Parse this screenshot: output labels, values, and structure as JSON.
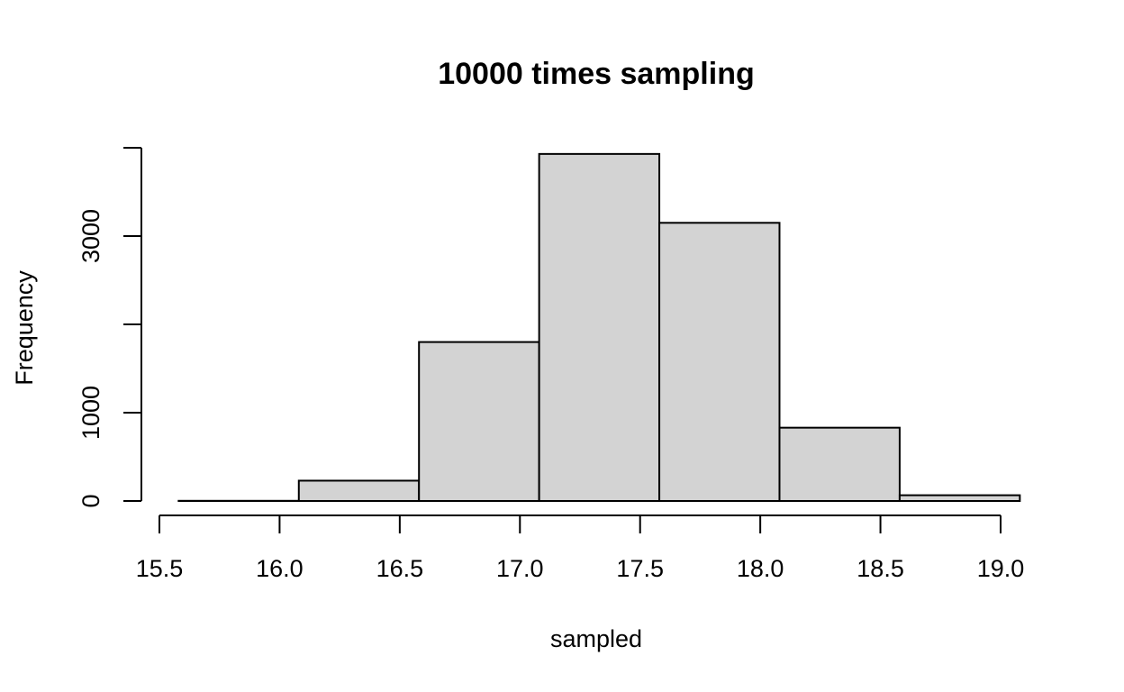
{
  "chart_data": {
    "type": "bar",
    "title": "10000 times sampling",
    "xlabel": "sampled",
    "ylabel": "Frequency",
    "bins": [
      {
        "start": 15.58,
        "end": 16.08,
        "value": 2
      },
      {
        "start": 16.08,
        "end": 16.58,
        "value": 230
      },
      {
        "start": 16.58,
        "end": 17.08,
        "value": 1800
      },
      {
        "start": 17.08,
        "end": 17.58,
        "value": 3930
      },
      {
        "start": 17.58,
        "end": 18.08,
        "value": 3150
      },
      {
        "start": 18.08,
        "end": 18.58,
        "value": 830
      },
      {
        "start": 18.58,
        "end": 19.08,
        "value": 65
      }
    ],
    "xticks": [
      15.5,
      16.0,
      16.5,
      17.0,
      17.5,
      18.0,
      18.5,
      19.0
    ],
    "xtick_labels": [
      "15.5",
      "16.0",
      "16.5",
      "17.0",
      "17.5",
      "18.0",
      "18.5",
      "19.0"
    ],
    "yticks": [
      0,
      1000,
      2000,
      3000,
      4000
    ],
    "ytick_labels": [
      "0",
      "1000",
      "",
      "3000",
      ""
    ],
    "xlim": [
      15.5,
      19.0
    ],
    "ylim": [
      0,
      4000
    ],
    "bar_fill": "#d3d3d3",
    "bar_stroke": "#000000",
    "grid": false,
    "legend": "none"
  }
}
